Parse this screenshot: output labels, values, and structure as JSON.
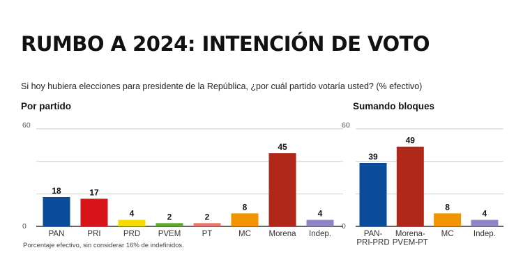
{
  "title": "RUMBO A 2024: INTENCIÓN DE VOTO",
  "subtitle": "Si hoy hubiera elecciones para presidente de la República, ¿por cuál partido votaría usted? (% efectivo)",
  "footnote": "Porcentaje efectivo, sin considerar 16% de indefinidos.",
  "chart_data": [
    {
      "type": "bar",
      "title": "Por partido",
      "categories": [
        [
          "PAN"
        ],
        [
          "PRI"
        ],
        [
          "PRD"
        ],
        [
          "PVEM"
        ],
        [
          "PT"
        ],
        [
          "MC"
        ],
        [
          "Morena"
        ],
        [
          "Indep."
        ]
      ],
      "values": [
        18,
        17,
        4,
        2,
        2,
        8,
        45,
        4
      ],
      "colors": [
        "#0b4c9a",
        "#d7141a",
        "#f4dc00",
        "#5ea82c",
        "#e8766a",
        "#f29400",
        "#b0281a",
        "#8e86c3"
      ],
      "ylim": [
        0,
        60
      ],
      "yticks": [
        "0",
        "60"
      ],
      "grid": true
    },
    {
      "type": "bar",
      "title": "Sumando bloques",
      "categories": [
        [
          "PAN-",
          "PRI-PRD"
        ],
        [
          "Morena-",
          "PVEM-PT"
        ],
        [
          "MC"
        ],
        [
          "Indep."
        ]
      ],
      "values": [
        39,
        49,
        8,
        4
      ],
      "colors": [
        "#0b4c9a",
        "#b0281a",
        "#f29400",
        "#8e86c3"
      ],
      "ylim": [
        0,
        60
      ],
      "yticks": [
        "0",
        "60"
      ],
      "grid": true
    }
  ]
}
